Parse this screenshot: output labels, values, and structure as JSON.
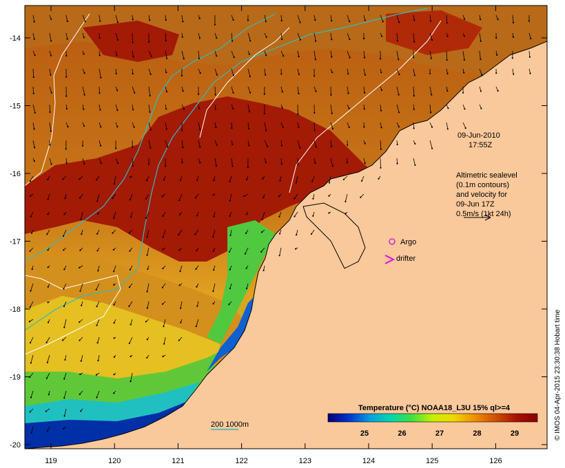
{
  "map": {
    "date_line": "09-Jun-2010",
    "time_line": "17:55Z",
    "info_lines": [
      "Altimetric sealevel",
      "(0.1m contours)",
      "and velocity for",
      "09-Jun 17Z",
      "0.5m/s (1kt 24h)"
    ],
    "legend": {
      "argo_label": "Argo",
      "drifter_label": "drifter",
      "argo_color": "#cc33cc",
      "drifter_color": "#dd22dd"
    },
    "depth_legend_label": "200  1000m",
    "depth_line_color": "#33bbbb",
    "colorbar": {
      "title": "Temperature (°C) NOAA18_L3U 15% ql>=4",
      "ticks": [
        "25",
        "26",
        "27",
        "28",
        "29"
      ],
      "colors": [
        "#00007a",
        "#0033cc",
        "#00a0e0",
        "#00d8b0",
        "#40e040",
        "#c8f000",
        "#f0d800",
        "#f09000",
        "#d05000",
        "#a81000",
        "#8a0000"
      ]
    },
    "credit": "© IMOS 04-Apr-2015 23:30:38 Hobart time",
    "land_color": "#f9c89b",
    "x_ticks": [
      "119",
      "120",
      "121",
      "122",
      "123",
      "124",
      "125",
      "126"
    ],
    "y_ticks": [
      "-14",
      "-15",
      "-16",
      "-17",
      "-18",
      "-19",
      "-20"
    ]
  }
}
